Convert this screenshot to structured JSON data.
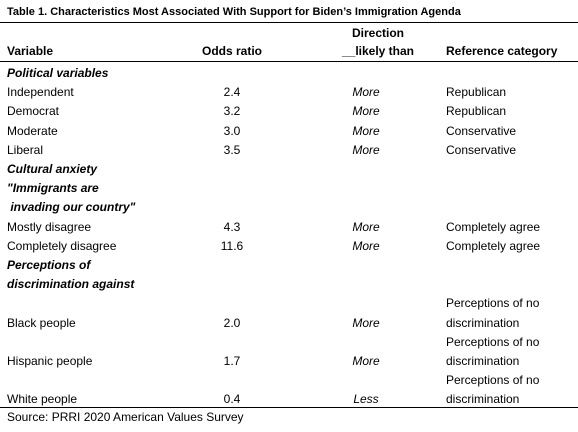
{
  "title": "Table 1. Characteristics Most Associated With Support for Biden’s Immigration Agenda",
  "header": {
    "variable": "Variable",
    "odds_ratio": "Odds ratio",
    "direction": [
      "Direction",
      "__likely than"
    ],
    "reference": "Reference category"
  },
  "sections": [
    {
      "label": [
        "Political variables"
      ],
      "rows": [
        {
          "variable": "Independent",
          "odds_ratio": "2.4",
          "direction": "More",
          "reference": [
            "Republican"
          ]
        },
        {
          "variable": "Democrat",
          "odds_ratio": "3.2",
          "direction": "More",
          "reference": [
            "Republican"
          ]
        },
        {
          "variable": "Moderate",
          "odds_ratio": "3.0",
          "direction": "More",
          "reference": [
            "Conservative"
          ]
        },
        {
          "variable": "Liberal",
          "odds_ratio": "3.5",
          "direction": "More",
          "reference": [
            "Conservative"
          ]
        }
      ]
    },
    {
      "label": [
        "Cultural anxiety",
        "\"Immigrants are",
        " invading our country\""
      ],
      "rows": [
        {
          "variable": "Mostly disagree",
          "odds_ratio": "4.3",
          "direction": "More",
          "reference": [
            "Completely agree"
          ]
        },
        {
          "variable": "Completely disagree",
          "odds_ratio": "11.6",
          "direction": "More",
          "reference": [
            "Completely agree"
          ]
        }
      ]
    },
    {
      "label": [
        "Perceptions of",
        "discrimination against"
      ],
      "rows": [
        {
          "variable": "Black people",
          "odds_ratio": "2.0",
          "direction": "More",
          "reference": [
            "Perceptions of no",
            "discrimination"
          ]
        },
        {
          "variable": "Hispanic people",
          "odds_ratio": "1.7",
          "direction": "More",
          "reference": [
            "Perceptions of no",
            "discrimination"
          ]
        },
        {
          "variable": "White people",
          "odds_ratio": "0.4",
          "direction": "Less",
          "reference": [
            "Perceptions of no",
            "discrimination"
          ]
        }
      ]
    }
  ],
  "source": "Source: PRRI 2020 American Values Survey"
}
